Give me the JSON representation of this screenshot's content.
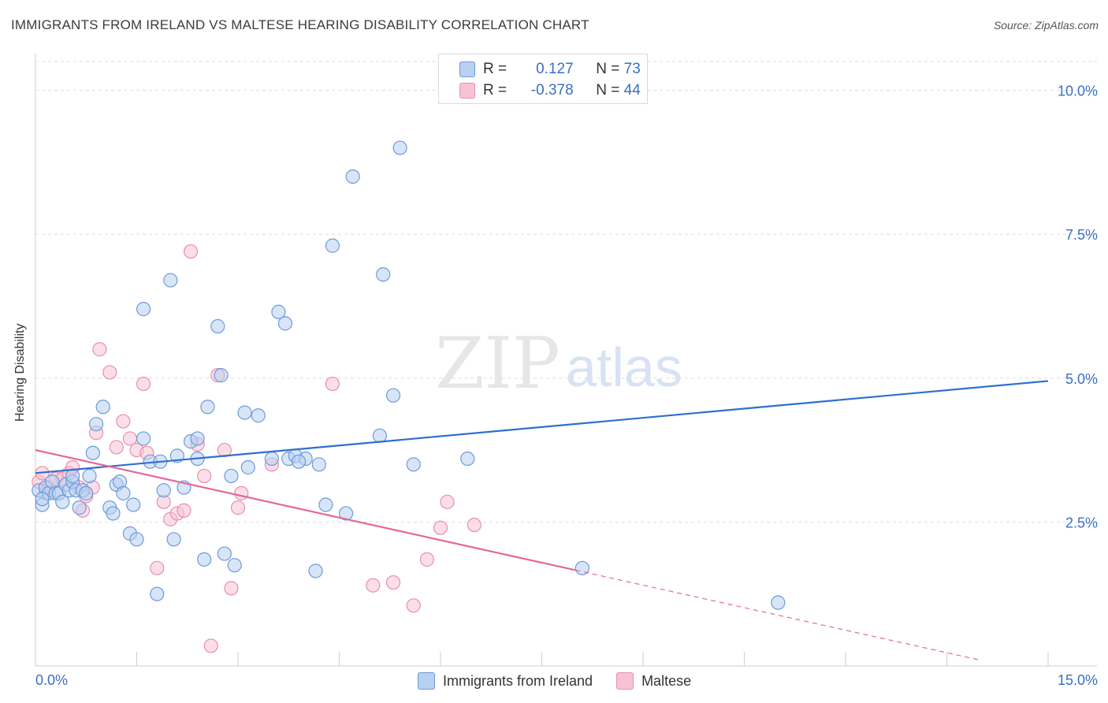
{
  "title": "IMMIGRANTS FROM IRELAND VS MALTESE HEARING DISABILITY CORRELATION CHART",
  "source": "Source: ZipAtlas.com",
  "watermark": {
    "zip": "ZIP",
    "atlas": "atlas"
  },
  "colors": {
    "blue_fill": "#b8d0f2",
    "blue_stroke": "#6d9bd8",
    "blue_line": "#2e6fcf",
    "pink_fill": "#f7c3d3",
    "pink_stroke": "#e690ae",
    "pink_line": "#e2689a",
    "axis_text": "#3a6fc4",
    "grid": "#dddddd"
  },
  "stats": {
    "blue": {
      "r_label": "R =",
      "r_value": "0.127",
      "n_label": "N =",
      "n_value": "73"
    },
    "pink": {
      "r_label": "R =",
      "r_value": "-0.378",
      "n_label": "N =",
      "n_value": "44"
    }
  },
  "legend": {
    "blue": "Immigrants from Ireland",
    "pink": "Maltese"
  },
  "chart_data": {
    "type": "scatter",
    "title": "IMMIGRANTS FROM IRELAND VS MALTESE HEARING DISABILITY CORRELATION CHART",
    "xlabel": "",
    "ylabel": "Hearing Disability",
    "xlim": [
      0,
      15
    ],
    "ylim": [
      0,
      10.5
    ],
    "x_tick_labels": [
      "0.0%",
      "15.0%"
    ],
    "y_ticks": [
      2.5,
      5.0,
      7.5,
      10.0
    ],
    "y_tick_labels": [
      "2.5%",
      "5.0%",
      "7.5%",
      "10.0%"
    ],
    "grid": true,
    "legend_position": "bottom",
    "series": [
      {
        "name": "Immigrants from Ireland",
        "color": "#b8d0f2",
        "trend": {
          "x": [
            0,
            15
          ],
          "y": [
            3.35,
            4.95
          ],
          "solid_until": 15
        },
        "points": [
          [
            0.05,
            3.05
          ],
          [
            0.1,
            2.8
          ],
          [
            0.15,
            3.1
          ],
          [
            0.2,
            3.0
          ],
          [
            0.25,
            3.2
          ],
          [
            0.3,
            3.0
          ],
          [
            0.35,
            3.0
          ],
          [
            0.4,
            2.85
          ],
          [
            0.45,
            3.15
          ],
          [
            0.5,
            3.05
          ],
          [
            0.55,
            3.2
          ],
          [
            0.6,
            3.05
          ],
          [
            0.65,
            2.75
          ],
          [
            0.7,
            3.05
          ],
          [
            0.75,
            3.0
          ],
          [
            0.8,
            3.3
          ],
          [
            0.85,
            3.7
          ],
          [
            0.9,
            4.2
          ],
          [
            1.0,
            4.5
          ],
          [
            1.1,
            2.75
          ],
          [
            1.15,
            2.65
          ],
          [
            1.2,
            3.15
          ],
          [
            1.25,
            3.2
          ],
          [
            1.3,
            3.0
          ],
          [
            1.4,
            2.3
          ],
          [
            1.45,
            2.8
          ],
          [
            1.5,
            2.2
          ],
          [
            1.6,
            3.95
          ],
          [
            1.7,
            3.55
          ],
          [
            1.8,
            1.25
          ],
          [
            1.85,
            3.55
          ],
          [
            1.9,
            3.05
          ],
          [
            2.0,
            6.7
          ],
          [
            2.05,
            2.2
          ],
          [
            2.1,
            3.65
          ],
          [
            2.2,
            3.1
          ],
          [
            2.3,
            3.9
          ],
          [
            2.4,
            3.6
          ],
          [
            2.5,
            1.85
          ],
          [
            2.55,
            4.5
          ],
          [
            2.7,
            5.9
          ],
          [
            2.75,
            5.05
          ],
          [
            2.8,
            1.95
          ],
          [
            2.9,
            3.3
          ],
          [
            2.95,
            1.75
          ],
          [
            3.1,
            4.4
          ],
          [
            3.15,
            3.45
          ],
          [
            3.3,
            4.35
          ],
          [
            3.5,
            3.6
          ],
          [
            3.6,
            6.15
          ],
          [
            3.7,
            5.95
          ],
          [
            3.75,
            3.6
          ],
          [
            3.85,
            3.65
          ],
          [
            4.0,
            3.6
          ],
          [
            4.15,
            1.65
          ],
          [
            4.2,
            3.5
          ],
          [
            4.3,
            2.8
          ],
          [
            4.4,
            7.3
          ],
          [
            4.6,
            2.65
          ],
          [
            4.7,
            8.5
          ],
          [
            5.1,
            4.0
          ],
          [
            5.15,
            6.8
          ],
          [
            5.3,
            4.7
          ],
          [
            5.4,
            9.0
          ],
          [
            5.6,
            3.5
          ],
          [
            1.6,
            6.2
          ],
          [
            6.4,
            3.6
          ],
          [
            8.1,
            1.7
          ],
          [
            11.0,
            1.1
          ],
          [
            0.1,
            2.9
          ],
          [
            3.9,
            3.55
          ],
          [
            2.4,
            3.95
          ],
          [
            0.55,
            3.3
          ]
        ]
      },
      {
        "name": "Maltese",
        "color": "#f7c3d3",
        "trend": {
          "x": [
            0,
            14
          ],
          "y": [
            3.75,
            0.1
          ],
          "solid_until": 8
        },
        "points": [
          [
            0.05,
            3.2
          ],
          [
            0.1,
            3.35
          ],
          [
            0.15,
            3.0
          ],
          [
            0.2,
            3.1
          ],
          [
            0.3,
            3.25
          ],
          [
            0.4,
            3.25
          ],
          [
            0.5,
            3.35
          ],
          [
            0.55,
            3.45
          ],
          [
            0.65,
            3.1
          ],
          [
            0.7,
            2.7
          ],
          [
            0.75,
            2.95
          ],
          [
            0.85,
            3.1
          ],
          [
            0.9,
            4.05
          ],
          [
            0.95,
            5.5
          ],
          [
            1.1,
            5.1
          ],
          [
            1.2,
            3.8
          ],
          [
            1.3,
            4.25
          ],
          [
            1.4,
            3.95
          ],
          [
            1.5,
            3.75
          ],
          [
            1.6,
            4.9
          ],
          [
            1.65,
            3.7
          ],
          [
            1.8,
            1.7
          ],
          [
            1.9,
            2.85
          ],
          [
            2.0,
            2.55
          ],
          [
            2.1,
            2.65
          ],
          [
            2.2,
            2.7
          ],
          [
            2.3,
            7.2
          ],
          [
            2.4,
            3.85
          ],
          [
            2.5,
            3.3
          ],
          [
            2.6,
            0.35
          ],
          [
            2.7,
            5.05
          ],
          [
            2.8,
            3.75
          ],
          [
            2.9,
            1.35
          ],
          [
            3.0,
            2.75
          ],
          [
            3.05,
            3.0
          ],
          [
            3.5,
            3.5
          ],
          [
            4.4,
            4.9
          ],
          [
            5.0,
            1.4
          ],
          [
            5.3,
            1.45
          ],
          [
            5.6,
            1.05
          ],
          [
            5.8,
            1.85
          ],
          [
            6.0,
            2.4
          ],
          [
            6.1,
            2.85
          ],
          [
            6.5,
            2.45
          ]
        ]
      }
    ]
  }
}
